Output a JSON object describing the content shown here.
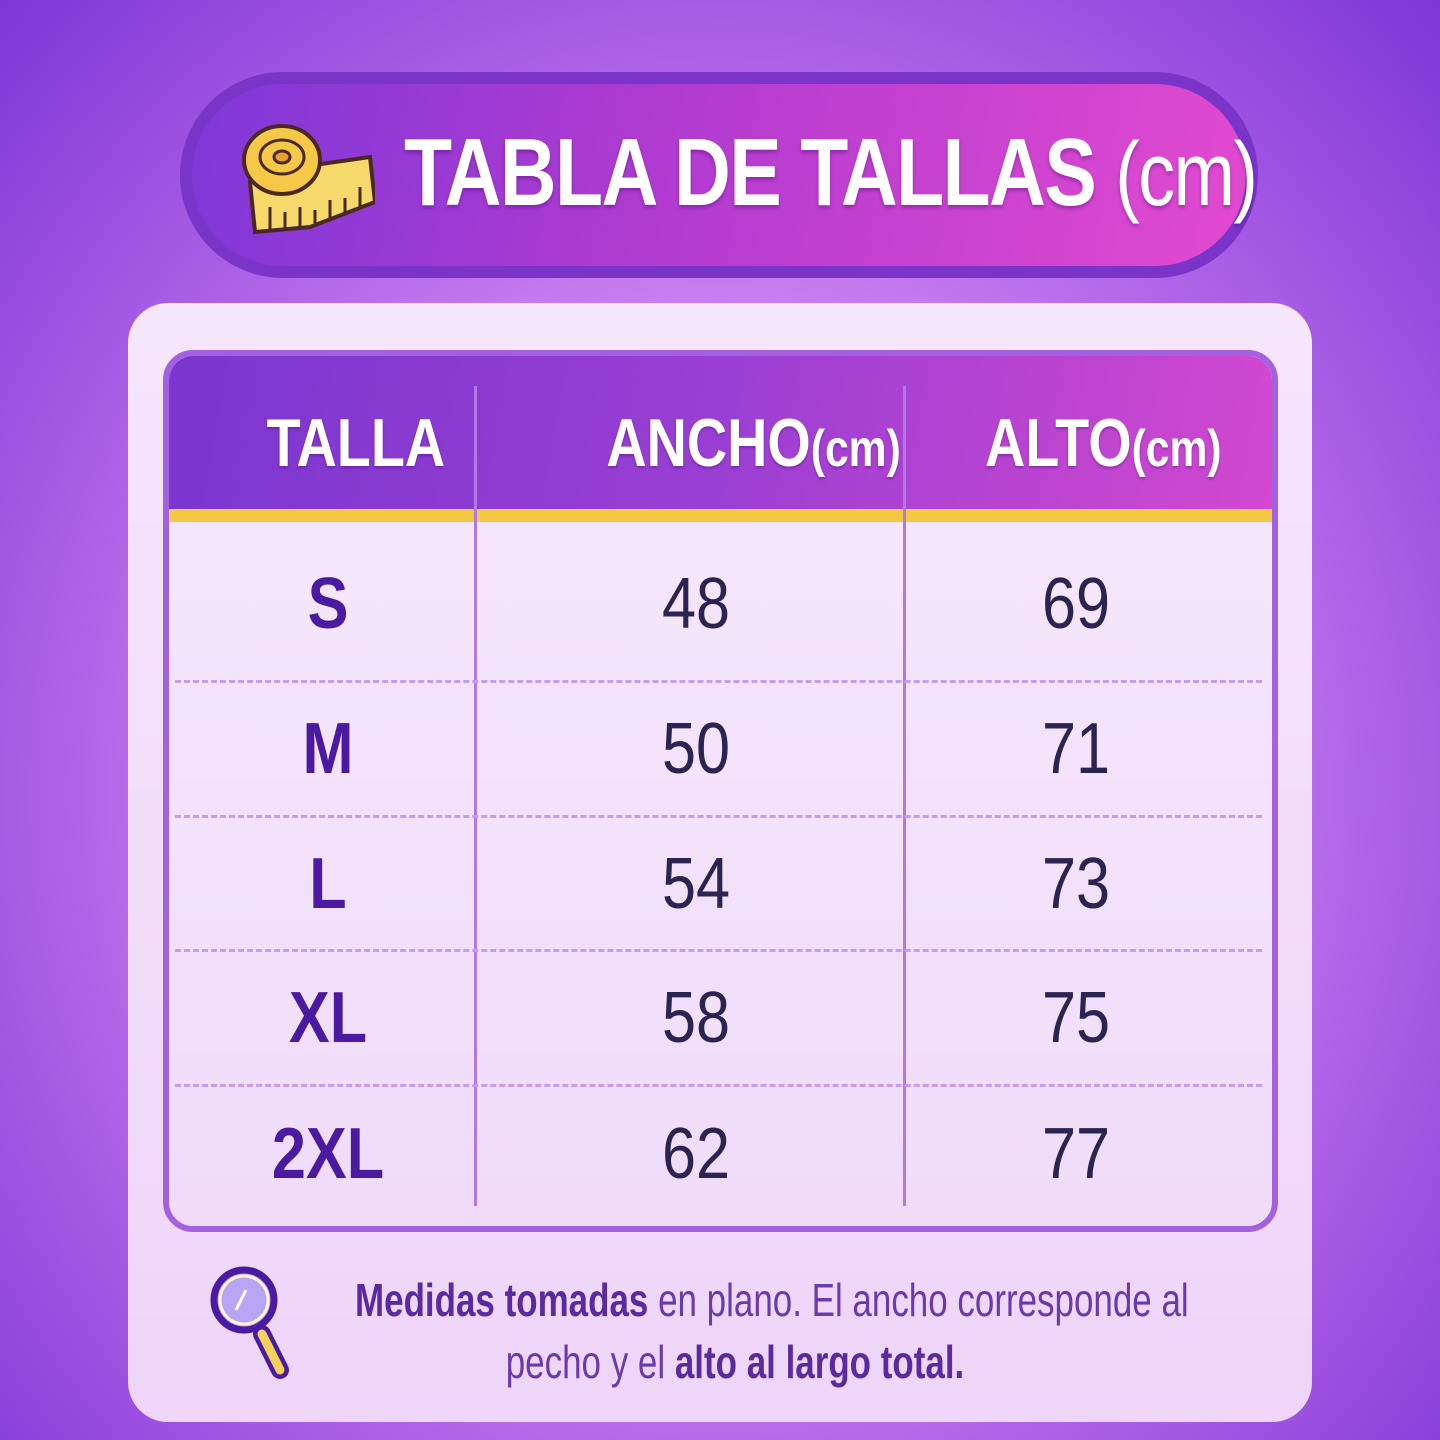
{
  "header": {
    "title": "TABLA DE TALLAS",
    "unit": "(cm)",
    "icon": "measuring-tape-icon"
  },
  "table": {
    "columns": [
      {
        "label": "TALLA",
        "unit": ""
      },
      {
        "label": "ANCHO",
        "unit": "(cm)"
      },
      {
        "label": "ALTO",
        "unit": "(cm)"
      }
    ],
    "rows": [
      {
        "size": "S",
        "ancho": "48",
        "alto": "69"
      },
      {
        "size": "M",
        "ancho": "50",
        "alto": "71"
      },
      {
        "size": "L",
        "ancho": "54",
        "alto": "73"
      },
      {
        "size": "XL",
        "ancho": "58",
        "alto": "75"
      },
      {
        "size": "2XL",
        "ancho": "62",
        "alto": "77"
      }
    ]
  },
  "note": {
    "icon": "magnifier-icon",
    "bold1": "Medidas tomadas",
    "text1": " en plano. El ancho corresponde al",
    "text2": "pecho y el ",
    "bold2": "alto al largo total."
  },
  "colors": {
    "accent": "#f4c842",
    "header_start": "#7a36cf",
    "header_end": "#d248cf",
    "size_text": "#4a1aa0"
  }
}
